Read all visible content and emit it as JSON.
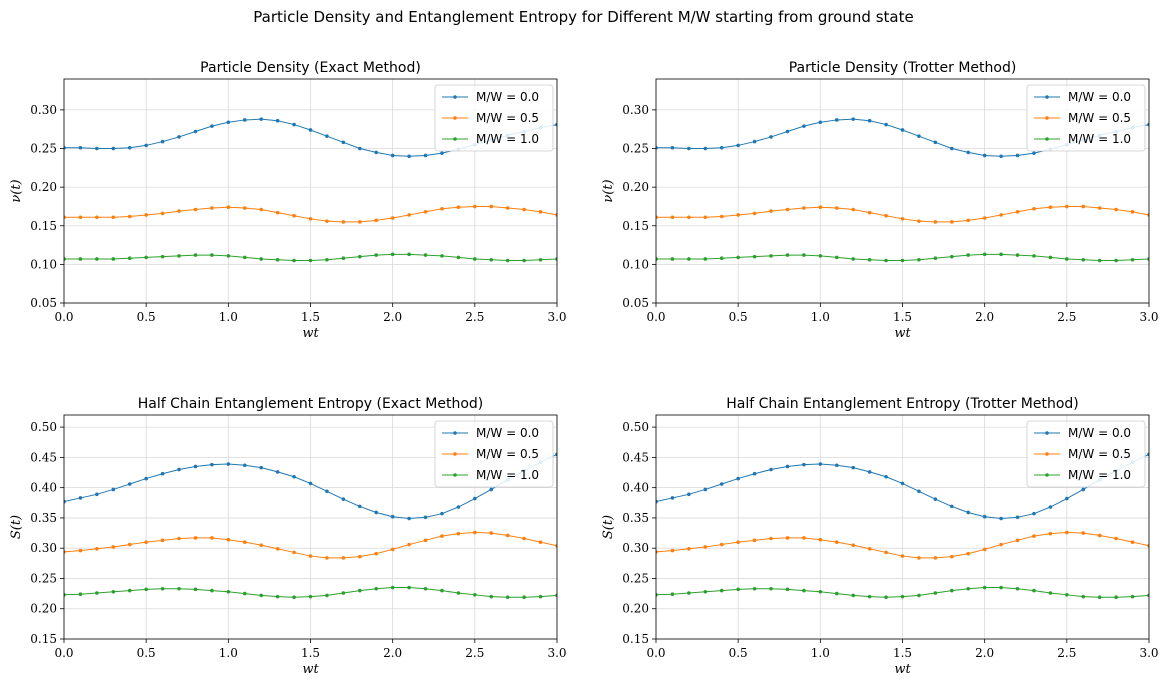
{
  "suptitle": "Particle Density and Entanglement Entropy for Different M/W starting from ground state",
  "legend_labels": [
    "M/W = 0.0",
    "M/W = 0.5",
    "M/W = 1.0"
  ],
  "colors": [
    "#1f77b4",
    "#ff7f0e",
    "#2ca02c"
  ],
  "chart_data": [
    {
      "type": "line",
      "title": "Particle Density (Exact Method)",
      "xlabel": "wt",
      "ylabel": "ν(t)",
      "xlim": [
        0,
        3
      ],
      "ylim": [
        0.05,
        0.34
      ],
      "xticks": [
        "0.0",
        "0.5",
        "1.0",
        "1.5",
        "2.0",
        "2.5",
        "3.0"
      ],
      "yticks": [
        "0.05",
        "0.10",
        "0.15",
        "0.20",
        "0.25",
        "0.30"
      ],
      "grid": true,
      "legend": "top-right",
      "x": [
        0.0,
        0.1,
        0.2,
        0.3,
        0.4,
        0.5,
        0.6,
        0.7,
        0.8,
        0.9,
        1.0,
        1.1,
        1.2,
        1.3,
        1.4,
        1.5,
        1.6,
        1.7,
        1.8,
        1.9,
        2.0,
        2.1,
        2.2,
        2.3,
        2.4,
        2.5,
        2.6,
        2.7,
        2.8,
        2.9,
        3.0
      ],
      "series": [
        {
          "name": "M/W = 0.0",
          "values": [
            0.251,
            0.251,
            0.25,
            0.25,
            0.251,
            0.254,
            0.259,
            0.265,
            0.272,
            0.279,
            0.284,
            0.287,
            0.288,
            0.286,
            0.281,
            0.274,
            0.266,
            0.258,
            0.25,
            0.245,
            0.241,
            0.24,
            0.241,
            0.244,
            0.249,
            0.255,
            0.261,
            0.267,
            0.272,
            0.277,
            0.281
          ]
        },
        {
          "name": "M/W = 0.5",
          "values": [
            0.161,
            0.161,
            0.161,
            0.161,
            0.162,
            0.164,
            0.166,
            0.169,
            0.171,
            0.173,
            0.174,
            0.173,
            0.171,
            0.167,
            0.163,
            0.159,
            0.156,
            0.155,
            0.155,
            0.157,
            0.16,
            0.164,
            0.168,
            0.172,
            0.174,
            0.175,
            0.175,
            0.173,
            0.171,
            0.168,
            0.164
          ]
        },
        {
          "name": "M/W = 1.0",
          "values": [
            0.107,
            0.107,
            0.107,
            0.107,
            0.108,
            0.109,
            0.11,
            0.111,
            0.112,
            0.112,
            0.111,
            0.109,
            0.107,
            0.106,
            0.105,
            0.105,
            0.106,
            0.108,
            0.11,
            0.112,
            0.113,
            0.113,
            0.112,
            0.111,
            0.109,
            0.107,
            0.106,
            0.105,
            0.105,
            0.106,
            0.107
          ]
        }
      ]
    },
    {
      "type": "line",
      "title": "Particle Density (Trotter Method)",
      "xlabel": "wt",
      "ylabel": "ν(t)",
      "xlim": [
        0,
        3
      ],
      "ylim": [
        0.05,
        0.34
      ],
      "xticks": [
        "0.0",
        "0.5",
        "1.0",
        "1.5",
        "2.0",
        "2.5",
        "3.0"
      ],
      "yticks": [
        "0.05",
        "0.10",
        "0.15",
        "0.20",
        "0.25",
        "0.30"
      ],
      "grid": true,
      "legend": "top-right",
      "x": [
        0.0,
        0.1,
        0.2,
        0.3,
        0.4,
        0.5,
        0.6,
        0.7,
        0.8,
        0.9,
        1.0,
        1.1,
        1.2,
        1.3,
        1.4,
        1.5,
        1.6,
        1.7,
        1.8,
        1.9,
        2.0,
        2.1,
        2.2,
        2.3,
        2.4,
        2.5,
        2.6,
        2.7,
        2.8,
        2.9,
        3.0
      ],
      "series": [
        {
          "name": "M/W = 0.0",
          "values": [
            0.251,
            0.251,
            0.25,
            0.25,
            0.251,
            0.254,
            0.259,
            0.265,
            0.272,
            0.279,
            0.284,
            0.287,
            0.288,
            0.286,
            0.281,
            0.274,
            0.266,
            0.258,
            0.25,
            0.245,
            0.241,
            0.24,
            0.241,
            0.244,
            0.249,
            0.255,
            0.261,
            0.267,
            0.272,
            0.277,
            0.281
          ]
        },
        {
          "name": "M/W = 0.5",
          "values": [
            0.161,
            0.161,
            0.161,
            0.161,
            0.162,
            0.164,
            0.166,
            0.169,
            0.171,
            0.173,
            0.174,
            0.173,
            0.171,
            0.167,
            0.163,
            0.159,
            0.156,
            0.155,
            0.155,
            0.157,
            0.16,
            0.164,
            0.168,
            0.172,
            0.174,
            0.175,
            0.175,
            0.173,
            0.171,
            0.168,
            0.164
          ]
        },
        {
          "name": "M/W = 1.0",
          "values": [
            0.107,
            0.107,
            0.107,
            0.107,
            0.108,
            0.109,
            0.11,
            0.111,
            0.112,
            0.112,
            0.111,
            0.109,
            0.107,
            0.106,
            0.105,
            0.105,
            0.106,
            0.108,
            0.11,
            0.112,
            0.113,
            0.113,
            0.112,
            0.111,
            0.109,
            0.107,
            0.106,
            0.105,
            0.105,
            0.106,
            0.107
          ]
        }
      ]
    },
    {
      "type": "line",
      "title": "Half Chain Entanglement Entropy (Exact Method)",
      "xlabel": "wt",
      "ylabel": "S(t)",
      "xlim": [
        0,
        3
      ],
      "ylim": [
        0.15,
        0.52
      ],
      "xticks": [
        "0.0",
        "0.5",
        "1.0",
        "1.5",
        "2.0",
        "2.5",
        "3.0"
      ],
      "yticks": [
        "0.15",
        "0.20",
        "0.25",
        "0.30",
        "0.35",
        "0.40",
        "0.45",
        "0.50"
      ],
      "grid": true,
      "legend": "top-right",
      "x": [
        0.0,
        0.1,
        0.2,
        0.3,
        0.4,
        0.5,
        0.6,
        0.7,
        0.8,
        0.9,
        1.0,
        1.1,
        1.2,
        1.3,
        1.4,
        1.5,
        1.6,
        1.7,
        1.8,
        1.9,
        2.0,
        2.1,
        2.2,
        2.3,
        2.4,
        2.5,
        2.6,
        2.7,
        2.8,
        2.9,
        3.0
      ],
      "series": [
        {
          "name": "M/W = 0.0",
          "values": [
            0.377,
            0.383,
            0.389,
            0.397,
            0.406,
            0.415,
            0.423,
            0.43,
            0.435,
            0.438,
            0.439,
            0.437,
            0.433,
            0.426,
            0.418,
            0.407,
            0.394,
            0.381,
            0.369,
            0.359,
            0.352,
            0.349,
            0.351,
            0.357,
            0.368,
            0.382,
            0.397,
            0.413,
            0.428,
            0.442,
            0.455
          ]
        },
        {
          "name": "M/W = 0.5",
          "values": [
            0.294,
            0.296,
            0.299,
            0.302,
            0.306,
            0.31,
            0.313,
            0.316,
            0.317,
            0.317,
            0.314,
            0.31,
            0.305,
            0.299,
            0.293,
            0.287,
            0.284,
            0.284,
            0.286,
            0.291,
            0.298,
            0.306,
            0.313,
            0.32,
            0.324,
            0.326,
            0.325,
            0.321,
            0.316,
            0.31,
            0.304
          ]
        },
        {
          "name": "M/W = 1.0",
          "values": [
            0.223,
            0.224,
            0.226,
            0.228,
            0.23,
            0.232,
            0.233,
            0.233,
            0.232,
            0.23,
            0.228,
            0.225,
            0.222,
            0.22,
            0.219,
            0.22,
            0.222,
            0.226,
            0.23,
            0.233,
            0.235,
            0.235,
            0.233,
            0.23,
            0.226,
            0.223,
            0.22,
            0.219,
            0.219,
            0.22,
            0.222
          ]
        }
      ]
    },
    {
      "type": "line",
      "title": "Half Chain Entanglement Entropy (Trotter Method)",
      "xlabel": "wt",
      "ylabel": "S(t)",
      "xlim": [
        0,
        3
      ],
      "ylim": [
        0.15,
        0.52
      ],
      "xticks": [
        "0.0",
        "0.5",
        "1.0",
        "1.5",
        "2.0",
        "2.5",
        "3.0"
      ],
      "yticks": [
        "0.15",
        "0.20",
        "0.25",
        "0.30",
        "0.35",
        "0.40",
        "0.45",
        "0.50"
      ],
      "grid": true,
      "legend": "top-right",
      "x": [
        0.0,
        0.1,
        0.2,
        0.3,
        0.4,
        0.5,
        0.6,
        0.7,
        0.8,
        0.9,
        1.0,
        1.1,
        1.2,
        1.3,
        1.4,
        1.5,
        1.6,
        1.7,
        1.8,
        1.9,
        2.0,
        2.1,
        2.2,
        2.3,
        2.4,
        2.5,
        2.6,
        2.7,
        2.8,
        2.9,
        3.0
      ],
      "series": [
        {
          "name": "M/W = 0.0",
          "values": [
            0.377,
            0.383,
            0.389,
            0.397,
            0.406,
            0.415,
            0.423,
            0.43,
            0.435,
            0.438,
            0.439,
            0.437,
            0.433,
            0.426,
            0.418,
            0.407,
            0.394,
            0.381,
            0.369,
            0.359,
            0.352,
            0.349,
            0.351,
            0.357,
            0.368,
            0.382,
            0.397,
            0.413,
            0.428,
            0.442,
            0.455
          ]
        },
        {
          "name": "M/W = 0.5",
          "values": [
            0.294,
            0.296,
            0.299,
            0.302,
            0.306,
            0.31,
            0.313,
            0.316,
            0.317,
            0.317,
            0.314,
            0.31,
            0.305,
            0.299,
            0.293,
            0.287,
            0.284,
            0.284,
            0.286,
            0.291,
            0.298,
            0.306,
            0.313,
            0.32,
            0.324,
            0.326,
            0.325,
            0.321,
            0.316,
            0.31,
            0.304
          ]
        },
        {
          "name": "M/W = 1.0",
          "values": [
            0.223,
            0.224,
            0.226,
            0.228,
            0.23,
            0.232,
            0.233,
            0.233,
            0.232,
            0.23,
            0.228,
            0.225,
            0.222,
            0.22,
            0.219,
            0.22,
            0.222,
            0.226,
            0.23,
            0.233,
            0.235,
            0.235,
            0.233,
            0.23,
            0.226,
            0.223,
            0.22,
            0.219,
            0.219,
            0.22,
            0.222
          ]
        }
      ]
    }
  ]
}
